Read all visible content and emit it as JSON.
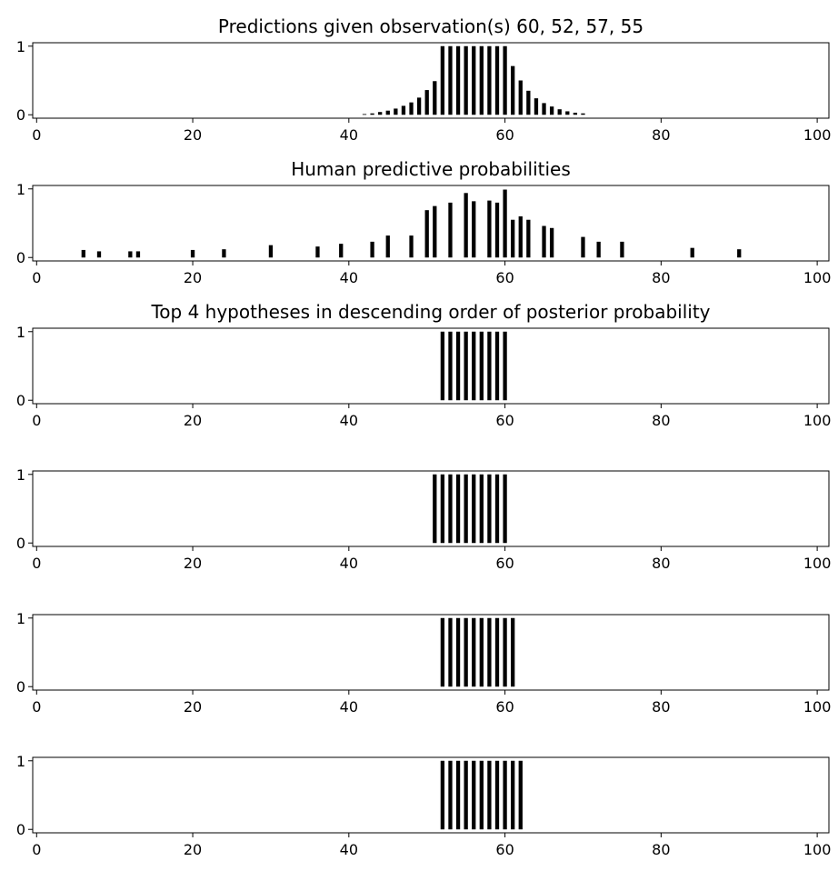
{
  "chart_data": [
    {
      "type": "bar",
      "title": "Predictions given observation(s) 60, 52, 57, 55",
      "xlabel": "",
      "ylabel": "",
      "xlim": [
        -0.5,
        101.5
      ],
      "ylim": [
        -0.05,
        1.05
      ],
      "xticks": [
        "0",
        "20",
        "40",
        "60",
        "80",
        "100"
      ],
      "yticks": [
        "0",
        "1"
      ],
      "bar_width": 0.5,
      "grid": false,
      "x": [
        42,
        43,
        44,
        45,
        46,
        47,
        48,
        49,
        50,
        51,
        52,
        53,
        54,
        55,
        56,
        57,
        58,
        59,
        60,
        61,
        62,
        63,
        64,
        65,
        66,
        67,
        68,
        69,
        70
      ],
      "values": [
        0.01,
        0.02,
        0.04,
        0.06,
        0.09,
        0.13,
        0.18,
        0.25,
        0.36,
        0.49,
        1,
        1,
        1,
        1,
        1,
        1,
        1,
        1,
        1,
        0.71,
        0.5,
        0.35,
        0.24,
        0.17,
        0.12,
        0.08,
        0.05,
        0.03,
        0.02
      ]
    },
    {
      "type": "bar",
      "title": "Human predictive probabilities",
      "xlabel": "",
      "ylabel": "",
      "xlim": [
        -0.5,
        101.5
      ],
      "ylim": [
        -0.05,
        1.05
      ],
      "xticks": [
        "0",
        "20",
        "40",
        "60",
        "80",
        "100"
      ],
      "yticks": [
        "0",
        "1"
      ],
      "bar_width": 0.5,
      "grid": false,
      "x": [
        6,
        8,
        12,
        13,
        20,
        24,
        30,
        36,
        39,
        43,
        45,
        48,
        50,
        51,
        53,
        55,
        56,
        58,
        59,
        60,
        61,
        62,
        63,
        65,
        66,
        70,
        72,
        75,
        84,
        90
      ],
      "values": [
        0.11,
        0.09,
        0.09,
        0.09,
        0.11,
        0.12,
        0.18,
        0.16,
        0.2,
        0.23,
        0.32,
        0.32,
        0.69,
        0.75,
        0.8,
        0.94,
        0.82,
        0.83,
        0.8,
        0.99,
        0.55,
        0.6,
        0.55,
        0.46,
        0.43,
        0.3,
        0.23,
        0.23,
        0.14,
        0.12
      ]
    },
    {
      "type": "bar",
      "title": "Top 4 hypotheses in descending order of posterior probability",
      "xlabel": "",
      "ylabel": "",
      "xlim": [
        -0.5,
        101.5
      ],
      "ylim": [
        -0.05,
        1.05
      ],
      "xticks": [
        "0",
        "20",
        "40",
        "60",
        "80",
        "100"
      ],
      "yticks": [
        "0",
        "1"
      ],
      "bar_width": 0.5,
      "grid": false,
      "x": [
        52,
        53,
        54,
        55,
        56,
        57,
        58,
        59,
        60
      ],
      "values": [
        1,
        1,
        1,
        1,
        1,
        1,
        1,
        1,
        1
      ]
    },
    {
      "type": "bar",
      "title": "",
      "xlabel": "",
      "ylabel": "",
      "xlim": [
        -0.5,
        101.5
      ],
      "ylim": [
        -0.05,
        1.05
      ],
      "xticks": [
        "0",
        "20",
        "40",
        "60",
        "80",
        "100"
      ],
      "yticks": [
        "0",
        "1"
      ],
      "bar_width": 0.5,
      "grid": false,
      "x": [
        51,
        52,
        53,
        54,
        55,
        56,
        57,
        58,
        59,
        60
      ],
      "values": [
        1,
        1,
        1,
        1,
        1,
        1,
        1,
        1,
        1,
        1
      ]
    },
    {
      "type": "bar",
      "title": "",
      "xlabel": "",
      "ylabel": "",
      "xlim": [
        -0.5,
        101.5
      ],
      "ylim": [
        -0.05,
        1.05
      ],
      "xticks": [
        "0",
        "20",
        "40",
        "60",
        "80",
        "100"
      ],
      "yticks": [
        "0",
        "1"
      ],
      "bar_width": 0.5,
      "grid": false,
      "x": [
        52,
        53,
        54,
        55,
        56,
        57,
        58,
        59,
        60,
        61
      ],
      "values": [
        1,
        1,
        1,
        1,
        1,
        1,
        1,
        1,
        1,
        1
      ]
    },
    {
      "type": "bar",
      "title": "",
      "xlabel": "",
      "ylabel": "",
      "xlim": [
        -0.5,
        101.5
      ],
      "ylim": [
        -0.05,
        1.05
      ],
      "xticks": [
        "0",
        "20",
        "40",
        "60",
        "80",
        "100"
      ],
      "yticks": [
        "0",
        "1"
      ],
      "bar_width": 0.5,
      "grid": false,
      "x": [
        52,
        53,
        54,
        55,
        56,
        57,
        58,
        59,
        60,
        61,
        62
      ],
      "values": [
        1,
        1,
        1,
        1,
        1,
        1,
        1,
        1,
        1,
        1,
        1
      ]
    }
  ],
  "colors": {
    "bar": "#000000",
    "axes": "#000000",
    "text": "#000000",
    "background": "#ffffff"
  }
}
